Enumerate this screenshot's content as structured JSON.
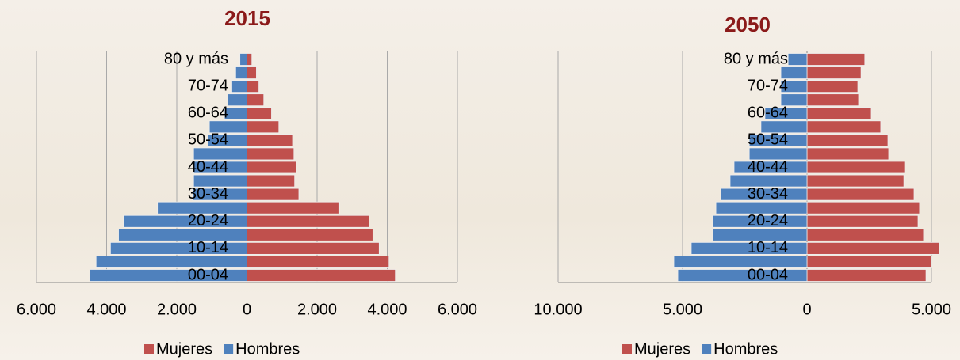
{
  "chart_data": [
    {
      "type": "bar",
      "orientation": "horizontal",
      "title": "2015",
      "categories": [
        "00-04",
        null,
        "10-14",
        null,
        "20-24",
        null,
        "30-34",
        null,
        "40-44",
        null,
        "50-54",
        null,
        "60-64",
        null,
        "70-74",
        null,
        "80 y más"
      ],
      "series": [
        {
          "name": "Mujeres",
          "color": "#c0504d",
          "values": [
            4230,
            4050,
            3770,
            3590,
            3480,
            2640,
            1480,
            1360,
            1410,
            1340,
            1300,
            910,
            700,
            480,
            340,
            270,
            140
          ]
        },
        {
          "name": "Hombres",
          "color": "#4f81bd",
          "values": [
            -4480,
            -4300,
            -3890,
            -3660,
            -3520,
            -2550,
            -1550,
            -1520,
            -1520,
            -1520,
            -1110,
            -1070,
            -640,
            -550,
            -430,
            -320,
            -200
          ]
        }
      ],
      "xlim": [
        -6000,
        6000
      ],
      "xticks": [
        {
          "value": -6000,
          "label": "6.000"
        },
        {
          "value": -4000,
          "label": "4.000"
        },
        {
          "value": -2000,
          "label": "2.000"
        },
        0,
        {
          "value": 2000,
          "label": "2.000"
        },
        {
          "value": 4000,
          "label": "4.000"
        },
        {
          "value": 6000,
          "label": "6.000"
        }
      ],
      "grid": true,
      "legend": "bottom",
      "stacked": true
    },
    {
      "type": "bar",
      "orientation": "horizontal",
      "title": "2050",
      "categories": [
        "00-04",
        null,
        "10-14",
        null,
        "20-24",
        null,
        "30-34",
        null,
        "40-44",
        null,
        "50-54",
        null,
        "60-64",
        null,
        "70-74",
        null,
        "80 y más"
      ],
      "series": [
        {
          "name": "Mujeres",
          "color": "#c0504d",
          "values": [
            4780,
            5000,
            5320,
            4680,
            4460,
            4520,
            4300,
            3890,
            3920,
            3280,
            3250,
            2960,
            2580,
            2070,
            2040,
            2170,
            2320
          ]
        },
        {
          "name": "Hombres",
          "color": "#4f81bd",
          "values": [
            -5190,
            -5350,
            -4650,
            -3790,
            -3790,
            -3660,
            -3470,
            -3090,
            -2930,
            -2320,
            -2320,
            -1850,
            -1690,
            -1050,
            -1050,
            -1050,
            -760
          ]
        }
      ],
      "xlim": [
        -10000,
        5000
      ],
      "xticks": [
        {
          "value": -10000,
          "label": "10.000"
        },
        {
          "value": -5000,
          "label": "5.000"
        },
        0,
        {
          "value": 5000,
          "label": "5.000"
        }
      ],
      "grid": true,
      "legend": "bottom",
      "stacked": true
    }
  ]
}
